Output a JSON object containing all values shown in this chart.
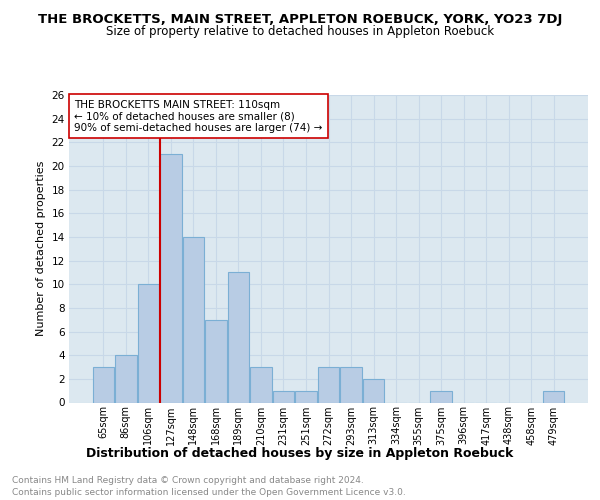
{
  "title": "THE BROCKETTS, MAIN STREET, APPLETON ROEBUCK, YORK, YO23 7DJ",
  "subtitle": "Size of property relative to detached houses in Appleton Roebuck",
  "xlabel": "Distribution of detached houses by size in Appleton Roebuck",
  "ylabel": "Number of detached properties",
  "categories": [
    "65sqm",
    "86sqm",
    "106sqm",
    "127sqm",
    "148sqm",
    "168sqm",
    "189sqm",
    "210sqm",
    "231sqm",
    "251sqm",
    "272sqm",
    "293sqm",
    "313sqm",
    "334sqm",
    "355sqm",
    "375sqm",
    "396sqm",
    "417sqm",
    "438sqm",
    "458sqm",
    "479sqm"
  ],
  "values": [
    3,
    4,
    10,
    21,
    14,
    7,
    11,
    3,
    1,
    1,
    3,
    3,
    2,
    0,
    0,
    1,
    0,
    0,
    0,
    0,
    1
  ],
  "bar_color": "#b8cce4",
  "bar_edge_color": "#7bafd4",
  "vline_color": "#cc0000",
  "annotation_text": "THE BROCKETTS MAIN STREET: 110sqm\n← 10% of detached houses are smaller (8)\n90% of semi-detached houses are larger (74) →",
  "annotation_box_color": "#ffffff",
  "annotation_box_edge": "#cc0000",
  "ylim": [
    0,
    26
  ],
  "yticks": [
    0,
    2,
    4,
    6,
    8,
    10,
    12,
    14,
    16,
    18,
    20,
    22,
    24,
    26
  ],
  "grid_color": "#c8d8e8",
  "background_color": "#dce8f0",
  "footer_line1": "Contains HM Land Registry data © Crown copyright and database right 2024.",
  "footer_line2": "Contains public sector information licensed under the Open Government Licence v3.0.",
  "title_fontsize": 9.5,
  "subtitle_fontsize": 8.5,
  "annotation_fontsize": 7.5,
  "xlabel_fontsize": 9,
  "ylabel_fontsize": 8,
  "xtick_fontsize": 7,
  "ytick_fontsize": 7.5,
  "footer_fontsize": 6.5
}
